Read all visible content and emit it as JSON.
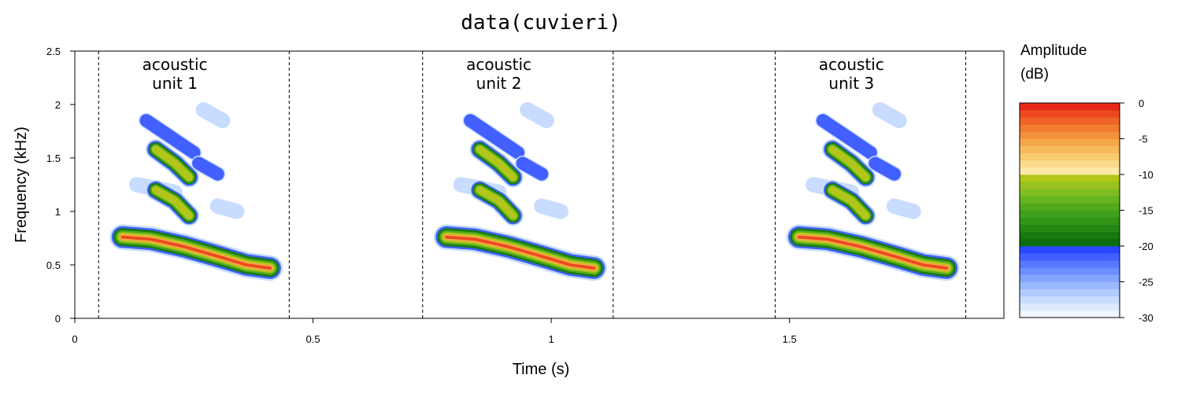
{
  "chart_data": {
    "type": "heatmap",
    "title": "data(cuvieri)",
    "xlabel": "Time (s)",
    "ylabel": "Frequency (kHz)",
    "xlim": [
      0,
      1.95
    ],
    "ylim": [
      0,
      2.5
    ],
    "x_ticks": [
      "0",
      "0.5",
      "1",
      "1.5"
    ],
    "x_tick_values": [
      0,
      0.5,
      1,
      1.5
    ],
    "y_ticks": [
      "0",
      "0.5",
      "1",
      "1.5",
      "2",
      "2.5"
    ],
    "y_tick_values": [
      0,
      0.5,
      1,
      1.5,
      2,
      2.5
    ],
    "boundaries": [
      0.05,
      0.45,
      0.73,
      1.13,
      1.47,
      1.87
    ],
    "units": [
      {
        "line1": "acoustic",
        "line2": "unit 1",
        "start": 0.05,
        "end": 0.45,
        "onset": 0.1
      },
      {
        "line1": "acoustic",
        "line2": "unit 2",
        "start": 0.73,
        "end": 1.13,
        "onset": 0.78
      },
      {
        "line1": "acoustic",
        "line2": "unit 3",
        "start": 1.47,
        "end": 1.87,
        "onset": 1.52
      }
    ],
    "call_shape": {
      "fundamental": {
        "t": [
          0.0,
          0.06,
          0.13,
          0.2,
          0.26,
          0.31
        ],
        "f": [
          0.76,
          0.74,
          0.67,
          0.58,
          0.5,
          0.47
        ],
        "peak_db": 0
      },
      "harmonic2": {
        "t": [
          0.07,
          0.11,
          0.14
        ],
        "f": [
          1.2,
          1.1,
          0.96
        ],
        "peak_db": -9
      },
      "harmonic3": {
        "t": [
          0.07,
          0.11,
          0.14
        ],
        "f": [
          1.58,
          1.45,
          1.32
        ],
        "peak_db": -8
      },
      "faint_bands": [
        {
          "t": [
            0.03,
            0.11
          ],
          "f": [
            1.25,
            1.18
          ],
          "peak_db": -25
        },
        {
          "t": [
            0.05,
            0.15
          ],
          "f": [
            1.85,
            1.55
          ],
          "peak_db": -22
        },
        {
          "t": [
            0.17,
            0.21
          ],
          "f": [
            1.95,
            1.85
          ],
          "peak_db": -24
        },
        {
          "t": [
            0.16,
            0.2
          ],
          "f": [
            1.45,
            1.35
          ],
          "peak_db": -23
        },
        {
          "t": [
            0.2,
            0.24
          ],
          "f": [
            1.05,
            1.0
          ],
          "peak_db": -26
        }
      ]
    },
    "colorbar": {
      "title_line1": "Amplitude",
      "title_line2": "(dB)",
      "range": [
        -30,
        0
      ],
      "ticks": [
        "0",
        "-5",
        "-10",
        "-15",
        "-20",
        "-25",
        "-30"
      ],
      "tick_values": [
        0,
        -5,
        -10,
        -15,
        -20,
        -25,
        -30
      ],
      "colors": [
        "#f0f6ff",
        "#dce9ff",
        "#c7dcff",
        "#b1cbff",
        "#9bb9ff",
        "#85a5ff",
        "#6e8fff",
        "#5878ff",
        "#4160ff",
        "#2a47ff",
        "#0b6d0b",
        "#167a0f",
        "#238813",
        "#319517",
        "#40a01b",
        "#51aa1e",
        "#67b420",
        "#7fbc22",
        "#98c21f",
        "#b2c61a",
        "#fbe9a6",
        "#fadb8c",
        "#f9cc72",
        "#f7ba5c",
        "#f6a74a",
        "#f4923b",
        "#f27c30",
        "#ef6426",
        "#ec4a1e",
        "#e82817"
      ]
    }
  }
}
